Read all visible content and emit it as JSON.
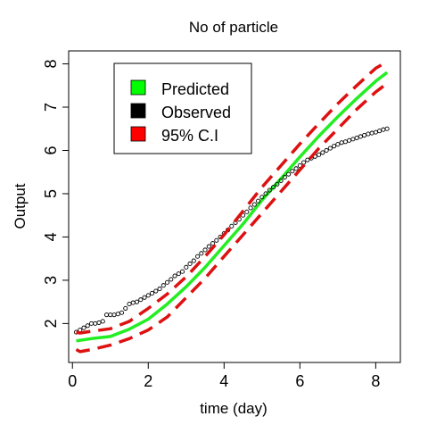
{
  "chart_data": {
    "type": "line",
    "title": "No of particle",
    "xlabel": "time (day)",
    "ylabel": "Output",
    "xlim": [
      -0.1,
      8.65
    ],
    "ylim": [
      1.1,
      8.3
    ],
    "x_ticks": [
      0,
      2,
      4,
      6,
      8
    ],
    "y_ticks": [
      2,
      3,
      4,
      5,
      6,
      7,
      8
    ],
    "grid": false,
    "legend_position": "top-left",
    "legend": [
      {
        "label": "Predicted",
        "color": "#00ff00"
      },
      {
        "label": "Observed",
        "color": "#000000"
      },
      {
        "label": "95% C.I",
        "color": "#ff0000"
      }
    ],
    "series": [
      {
        "name": "Predicted",
        "style": "solid-line",
        "color": "#22ee22",
        "x": [
          0.1,
          0.5,
          1.0,
          1.5,
          2.0,
          2.5,
          3.0,
          3.5,
          4.0,
          4.5,
          5.0,
          5.5,
          6.0,
          6.5,
          7.0,
          7.5,
          8.0,
          8.3
        ],
        "y": [
          1.6,
          1.65,
          1.7,
          1.87,
          2.1,
          2.45,
          2.85,
          3.3,
          3.8,
          4.3,
          4.85,
          5.35,
          5.85,
          6.33,
          6.78,
          7.2,
          7.6,
          7.8
        ]
      },
      {
        "name": "Observed",
        "style": "points",
        "color": "#000000",
        "x": [
          0.1,
          0.2,
          0.3,
          0.4,
          0.5,
          0.6,
          0.7,
          0.8,
          0.9,
          1.0,
          1.1,
          1.2,
          1.3,
          1.4,
          1.5,
          1.6,
          1.7,
          1.8,
          1.9,
          2.0,
          2.1,
          2.2,
          2.3,
          2.4,
          2.5,
          2.6,
          2.7,
          2.8,
          2.9,
          3.0,
          3.1,
          3.2,
          3.3,
          3.4,
          3.5,
          3.6,
          3.7,
          3.8,
          3.9,
          4.0,
          4.1,
          4.2,
          4.3,
          4.4,
          4.5,
          4.6,
          4.7,
          4.8,
          4.9,
          5.0,
          5.1,
          5.2,
          5.3,
          5.4,
          5.5,
          5.6,
          5.7,
          5.8,
          5.9,
          6.0,
          6.1,
          6.2,
          6.3,
          6.4,
          6.5,
          6.6,
          6.7,
          6.8,
          6.9,
          7.0,
          7.1,
          7.2,
          7.3,
          7.4,
          7.5,
          7.6,
          7.7,
          7.8,
          7.9,
          8.0,
          8.1,
          8.2,
          8.3
        ],
        "y": [
          1.8,
          1.85,
          1.9,
          1.95,
          2.0,
          2.0,
          2.02,
          2.05,
          2.2,
          2.2,
          2.2,
          2.22,
          2.25,
          2.35,
          2.45,
          2.48,
          2.5,
          2.55,
          2.6,
          2.65,
          2.7,
          2.75,
          2.8,
          2.88,
          2.95,
          3.02,
          3.1,
          3.15,
          3.2,
          3.3,
          3.38,
          3.45,
          3.55,
          3.62,
          3.7,
          3.78,
          3.85,
          3.92,
          4.0,
          4.08,
          4.16,
          4.25,
          4.33,
          4.41,
          4.5,
          4.58,
          4.67,
          4.75,
          4.83,
          4.92,
          5.0,
          5.08,
          5.15,
          5.22,
          5.3,
          5.38,
          5.45,
          5.52,
          5.58,
          5.65,
          5.72,
          5.78,
          5.82,
          5.86,
          5.9,
          5.95,
          6.0,
          6.05,
          6.1,
          6.14,
          6.18,
          6.2,
          6.23,
          6.26,
          6.29,
          6.32,
          6.35,
          6.38,
          6.4,
          6.42,
          6.45,
          6.48,
          6.5
        ]
      },
      {
        "name": "95% C.I",
        "style": "dashed-line",
        "color": "#dd1111",
        "x": [
          0.1,
          0.2,
          0.5,
          1.0,
          1.5,
          2.0,
          2.5,
          3.0,
          3.5,
          4.0,
          4.5,
          5.0,
          5.5,
          6.0,
          6.5,
          7.0,
          7.5,
          8.0,
          8.3
        ],
        "y": [
          1.8,
          1.78,
          1.82,
          1.88,
          2.05,
          2.35,
          2.68,
          3.08,
          3.55,
          4.05,
          4.6,
          5.15,
          5.65,
          6.15,
          6.62,
          7.08,
          7.5,
          7.9,
          8.05
        ]
      },
      {
        "name": "95% C.I",
        "style": "dashed-line",
        "color": "#dd1111",
        "x": [
          0.1,
          0.2,
          0.5,
          1.0,
          1.5,
          2.0,
          2.5,
          3.0,
          3.5,
          4.0,
          4.5,
          5.0,
          5.5,
          6.0,
          6.5,
          7.0,
          7.5,
          8.0,
          8.3
        ],
        "y": [
          1.4,
          1.35,
          1.4,
          1.5,
          1.65,
          1.85,
          2.15,
          2.6,
          3.05,
          3.55,
          4.05,
          4.55,
          5.05,
          5.55,
          6.05,
          6.5,
          6.95,
          7.35,
          7.55
        ]
      }
    ]
  }
}
